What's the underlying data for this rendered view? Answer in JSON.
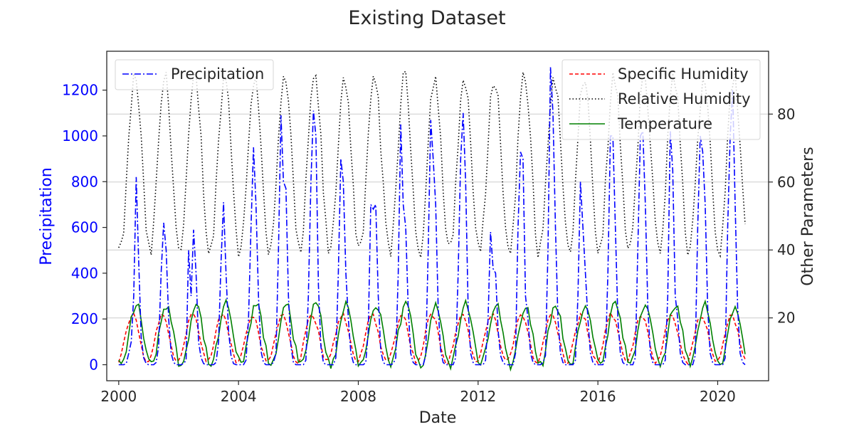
{
  "chart_data": {
    "type": "line",
    "title": "Existing Dataset",
    "xlabel": "Date",
    "ylabel_left": "Precipitation",
    "ylabel_right": "Other Parameters",
    "x_ticks": [
      "2000",
      "2004",
      "2008",
      "2012",
      "2016",
      "2020"
    ],
    "y_left_ticks": [
      "0",
      "200",
      "400",
      "600",
      "800",
      "1000",
      "1200"
    ],
    "y_right_ticks": [
      "20",
      "40",
      "60",
      "80"
    ],
    "x_range": [
      1999.6,
      2021.7
    ],
    "y_left_range": [
      -70,
      1370
    ],
    "y_right_range": [
      1.5,
      98.5
    ],
    "grid": "horizontal (right axis)",
    "legend_left": "top-left",
    "legend_right": "top-right",
    "colors": {
      "precipitation": "#0000ff",
      "specific_humidity": "#ff0000",
      "relative_humidity": "#000000",
      "temperature": "#008000",
      "grid": "#cccccc",
      "axis_text": "#262626",
      "left_axis_text": "#0000ff"
    },
    "series": [
      {
        "name": "Precipitation",
        "axis": "left",
        "style": "dashdot",
        "color": "#0000ff",
        "years_start": 2000,
        "values": [
          [
            0,
            0,
            0,
            5,
            50,
            100,
            300,
            820,
            450,
            120,
            30,
            5
          ],
          [
            0,
            0,
            0,
            10,
            80,
            400,
            620,
            500,
            200,
            50,
            10,
            0
          ],
          [
            0,
            0,
            5,
            20,
            500,
            300,
            590,
            400,
            100,
            30,
            5,
            0
          ],
          [
            0,
            0,
            0,
            10,
            100,
            450,
            710,
            400,
            150,
            40,
            5,
            0
          ],
          [
            0,
            0,
            0,
            20,
            200,
            600,
            950,
            700,
            300,
            60,
            10,
            0
          ],
          [
            0,
            0,
            10,
            50,
            500,
            1090,
            800,
            770,
            300,
            80,
            10,
            0
          ],
          [
            0,
            0,
            0,
            20,
            300,
            800,
            1110,
            1000,
            350,
            80,
            10,
            0
          ],
          [
            0,
            0,
            0,
            30,
            400,
            900,
            800,
            400,
            200,
            50,
            10,
            0
          ],
          [
            0,
            0,
            0,
            10,
            150,
            700,
            680,
            700,
            300,
            60,
            10,
            0
          ],
          [
            0,
            0,
            5,
            30,
            400,
            1050,
            700,
            600,
            250,
            50,
            10,
            0
          ],
          [
            0,
            0,
            0,
            40,
            500,
            1070,
            900,
            700,
            250,
            60,
            10,
            0
          ],
          [
            0,
            0,
            0,
            30,
            400,
            900,
            1100,
            800,
            250,
            50,
            10,
            0
          ],
          [
            0,
            0,
            0,
            20,
            200,
            580,
            420,
            400,
            150,
            40,
            10,
            0
          ],
          [
            0,
            0,
            0,
            50,
            600,
            930,
            900,
            300,
            200,
            50,
            10,
            0
          ],
          [
            0,
            0,
            10,
            40,
            500,
            1300,
            1100,
            600,
            200,
            50,
            10,
            0
          ],
          [
            0,
            0,
            0,
            20,
            300,
            800,
            600,
            400,
            200,
            50,
            10,
            0
          ],
          [
            0,
            0,
            0,
            30,
            400,
            1000,
            1000,
            600,
            200,
            50,
            10,
            0
          ],
          [
            0,
            0,
            0,
            30,
            500,
            1000,
            1020,
            700,
            250,
            50,
            10,
            0
          ],
          [
            0,
            0,
            0,
            20,
            300,
            1020,
            850,
            300,
            200,
            50,
            10,
            0
          ],
          [
            0,
            0,
            0,
            40,
            600,
            1000,
            930,
            700,
            250,
            50,
            10,
            0
          ],
          [
            0,
            0,
            0,
            30,
            600,
            1000,
            1200,
            700,
            250,
            50,
            10,
            0
          ]
        ]
      },
      {
        "name": "Specific Humidity",
        "axis": "right",
        "style": "dashed",
        "color": "#ff0000",
        "values_desc": "seasonal cycle between about 7 and 21"
      },
      {
        "name": "Relative Humidity",
        "axis": "right",
        "style": "dotted",
        "color": "#000000",
        "values_desc": "seasonal cycle between about 38 and 92"
      },
      {
        "name": "Temperature",
        "axis": "right",
        "style": "solid",
        "color": "#008000",
        "values_desc": "seasonal cycle between about 5 and 28"
      }
    ]
  }
}
